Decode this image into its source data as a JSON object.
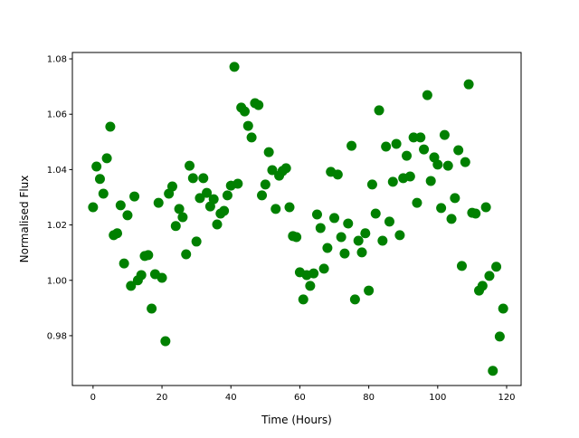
{
  "chart_data": {
    "type": "scatter",
    "title": "",
    "xlabel": "Time (Hours)",
    "ylabel": "Normalised Flux",
    "xlim": [
      -6,
      124.2
    ],
    "ylim": [
      0.962,
      1.0823
    ],
    "xticks": [
      0,
      20,
      40,
      60,
      80,
      100,
      120
    ],
    "xtick_labels": [
      "0",
      "20",
      "40",
      "60",
      "80",
      "100",
      "120"
    ],
    "yticks": [
      0.98,
      1.0,
      1.02,
      1.04,
      1.06,
      1.08
    ],
    "ytick_labels": [
      "0.98",
      "1.00",
      "1.02",
      "1.04",
      "1.06",
      "1.08"
    ],
    "grid": false,
    "marker_color": "#008000",
    "x": [
      0,
      1,
      2,
      3,
      4,
      5,
      6,
      7,
      8,
      9,
      10,
      11,
      12,
      13,
      14,
      15,
      16,
      17,
      18,
      19,
      20,
      21,
      22,
      23,
      24,
      25,
      26,
      27,
      28,
      29,
      30,
      31,
      32,
      33,
      34,
      35,
      36,
      37,
      38,
      39,
      40,
      41,
      42,
      43,
      44,
      45,
      46,
      47,
      48,
      49,
      50,
      51,
      52,
      53,
      54,
      55,
      56,
      57,
      58,
      59,
      60,
      61,
      62,
      63,
      64,
      65,
      66,
      67,
      68,
      69,
      70,
      71,
      72,
      73,
      74,
      75,
      76,
      77,
      78,
      79,
      80,
      81,
      82,
      83,
      84,
      85,
      86,
      87,
      88,
      89,
      90,
      91,
      92,
      93,
      94,
      95,
      96,
      97,
      98,
      99,
      100,
      101,
      102,
      103,
      104,
      105,
      106,
      107,
      108,
      109,
      110,
      111,
      112,
      113,
      114,
      115,
      116,
      117,
      118,
      119
    ],
    "y": [
      1.0264,
      1.0411,
      1.0366,
      1.0313,
      1.0441,
      1.0555,
      1.0163,
      1.017,
      1.0271,
      1.0061,
      1.0235,
      0.998,
      1.0303,
      1.0,
      1.0019,
      1.0088,
      1.0091,
      0.9898,
      1.0022,
      1.028,
      1.0009,
      0.978,
      1.0313,
      1.0339,
      1.0196,
      1.0258,
      1.0228,
      1.0094,
      1.0414,
      1.0369,
      1.014,
      1.0297,
      1.0369,
      1.0316,
      1.0267,
      1.0293,
      1.0202,
      1.0241,
      1.0251,
      1.0307,
      1.0342,
      1.0771,
      1.0349,
      1.0624,
      1.061,
      1.0558,
      1.0516,
      1.064,
      1.0633,
      1.0307,
      1.0346,
      1.0463,
      1.0398,
      1.0258,
      1.0378,
      1.0395,
      1.0405,
      1.0264,
      1.016,
      1.0156,
      1.0029,
      0.9931,
      1.0019,
      0.998,
      1.0025,
      1.0238,
      1.0189,
      1.0042,
      1.0117,
      1.0392,
      1.0225,
      1.0382,
      1.0156,
      1.0097,
      1.0205,
      1.0486,
      0.9931,
      1.0143,
      1.0101,
      1.017,
      0.9963,
      1.0346,
      1.0241,
      1.0614,
      1.0143,
      1.0483,
      1.0212,
      1.0356,
      1.0493,
      1.0163,
      1.0369,
      1.045,
      1.0375,
      1.0516,
      1.028,
      1.0516,
      1.0473,
      1.0669,
      1.0359,
      1.0444,
      1.0418,
      1.0261,
      1.0525,
      1.0414,
      1.0222,
      1.0297,
      1.047,
      1.0052,
      1.0427,
      1.0708,
      1.0244,
      1.0241,
      0.9963,
      0.998,
      1.0264,
      1.0016,
      0.9673,
      1.0049,
      0.9797,
      0.9898
    ]
  }
}
